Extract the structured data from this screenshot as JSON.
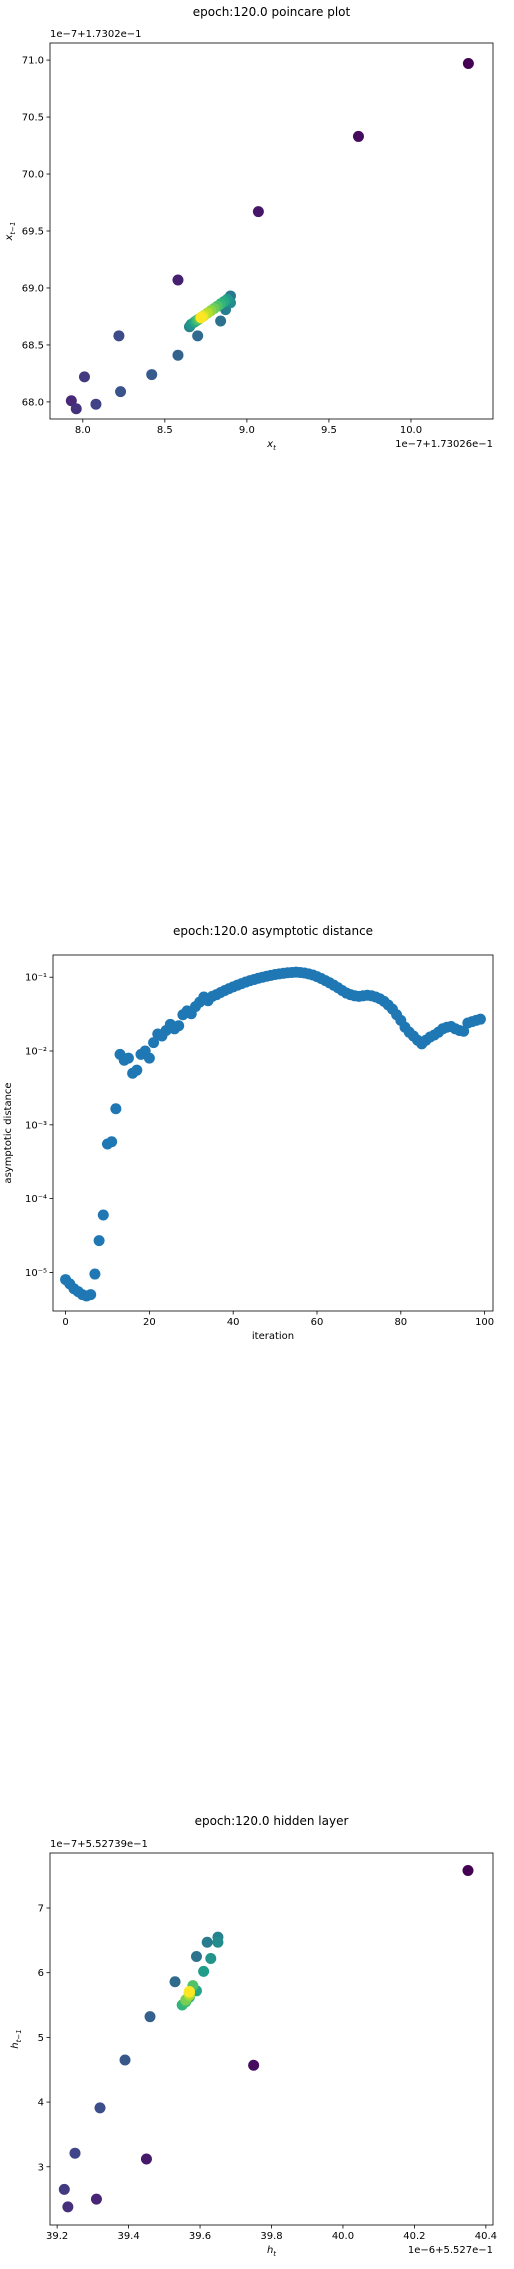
{
  "chart_data": [
    {
      "type": "scatter",
      "title": "epoch:120.0 poincare plot",
      "xlabel": "x_t",
      "ylabel": "x_{t-1}",
      "x_offset_text": "1e−7+1.73026e−1",
      "y_offset_text": "1e−7+1.7302e−1",
      "xlim": [
        7.8,
        10.5
      ],
      "ylim": [
        67.85,
        71.15
      ],
      "xticks": [
        8.0,
        8.5,
        9.0,
        9.5,
        10.0
      ],
      "yticks": [
        68.0,
        68.5,
        69.0,
        69.5,
        70.0,
        70.5,
        71.0
      ],
      "colormap": "viridis",
      "points": [
        {
          "x": 10.35,
          "y": 70.97
        },
        {
          "x": 9.68,
          "y": 70.33
        },
        {
          "x": 9.07,
          "y": 69.67
        },
        {
          "x": 8.58,
          "y": 69.07
        },
        {
          "x": 7.93,
          "y": 68.01
        },
        {
          "x": 7.96,
          "y": 67.94
        },
        {
          "x": 8.01,
          "y": 68.22
        },
        {
          "x": 8.08,
          "y": 67.98
        },
        {
          "x": 8.22,
          "y": 68.58
        },
        {
          "x": 8.23,
          "y": 68.09
        },
        {
          "x": 8.42,
          "y": 68.24
        },
        {
          "x": 8.58,
          "y": 68.41
        },
        {
          "x": 8.7,
          "y": 68.58
        },
        {
          "x": 8.84,
          "y": 68.71
        },
        {
          "x": 8.9,
          "y": 68.93
        },
        {
          "x": 8.87,
          "y": 68.81
        },
        {
          "x": 8.65,
          "y": 68.66
        },
        {
          "x": 8.9,
          "y": 68.87
        },
        {
          "x": 8.66,
          "y": 68.68
        },
        {
          "x": 8.88,
          "y": 68.9
        },
        {
          "x": 8.68,
          "y": 68.7
        },
        {
          "x": 8.86,
          "y": 68.88
        },
        {
          "x": 8.69,
          "y": 68.71
        },
        {
          "x": 8.84,
          "y": 68.86
        },
        {
          "x": 8.7,
          "y": 68.72
        },
        {
          "x": 8.82,
          "y": 68.84
        },
        {
          "x": 8.71,
          "y": 68.73
        },
        {
          "x": 8.8,
          "y": 68.82
        },
        {
          "x": 8.72,
          "y": 68.74
        },
        {
          "x": 8.78,
          "y": 68.8
        },
        {
          "x": 8.73,
          "y": 68.75
        },
        {
          "x": 8.76,
          "y": 68.78
        },
        {
          "x": 8.74,
          "y": 68.76
        },
        {
          "x": 8.72,
          "y": 68.74
        },
        {
          "x": 8.73,
          "y": 68.75
        },
        {
          "x": 8.72,
          "y": 68.74
        }
      ]
    },
    {
      "type": "scatter",
      "title": "epoch:120.0 asymptotic distance",
      "xlabel": "iteration",
      "ylabel": "asymptotic distance",
      "yscale": "log",
      "xlim": [
        -3,
        102
      ],
      "ylim": [
        3e-06,
        0.2
      ],
      "xticks": [
        0,
        20,
        40,
        60,
        80,
        100
      ],
      "yticks": [
        1e-05,
        0.0001,
        0.001,
        0.01,
        0.1
      ],
      "ytick_labels": [
        "10⁻⁵",
        "10⁻⁴",
        "10⁻³",
        "10⁻²",
        "10⁻¹"
      ],
      "color": "#1f77b4",
      "y": [
        8e-06,
        7e-06,
        6e-06,
        5.5e-06,
        5e-06,
        4.8e-06,
        5e-06,
        9.5e-06,
        2.7e-05,
        6e-05,
        0.00055,
        0.00059,
        0.00165,
        0.009,
        0.0075,
        0.008,
        0.005,
        0.0055,
        0.009,
        0.01,
        0.008,
        0.013,
        0.017,
        0.016,
        0.019,
        0.023,
        0.02,
        0.022,
        0.031,
        0.035,
        0.032,
        0.04,
        0.046,
        0.054,
        0.048,
        0.055,
        0.058,
        0.062,
        0.066,
        0.07,
        0.074,
        0.078,
        0.082,
        0.086,
        0.09,
        0.093,
        0.097,
        0.1,
        0.103,
        0.106,
        0.109,
        0.111,
        0.113,
        0.115,
        0.116,
        0.117,
        0.116,
        0.114,
        0.111,
        0.107,
        0.102,
        0.096,
        0.09,
        0.084,
        0.078,
        0.072,
        0.066,
        0.061,
        0.058,
        0.056,
        0.055,
        0.056,
        0.057,
        0.056,
        0.054,
        0.051,
        0.047,
        0.042,
        0.037,
        0.031,
        0.026,
        0.021,
        0.018,
        0.016,
        0.014,
        0.0125,
        0.014,
        0.0155,
        0.0165,
        0.018,
        0.02,
        0.021,
        0.0215,
        0.02,
        0.019,
        0.0185,
        0.024,
        0.025,
        0.026,
        0.027
      ]
    },
    {
      "type": "scatter",
      "title": "epoch:120.0 hidden layer",
      "xlabel": "h_t",
      "ylabel": "h_{t-1}",
      "x_offset_text": "1e−6+5.527e−1",
      "y_offset_text": "1e−7+5.52739e−1",
      "xlim": [
        39.18,
        40.42
      ],
      "ylim": [
        2.1,
        7.85
      ],
      "xticks": [
        39.2,
        39.4,
        39.6,
        39.8,
        40.0,
        40.2,
        40.4
      ],
      "yticks": [
        3,
        4,
        5,
        6,
        7
      ],
      "colormap": "viridis",
      "points": [
        {
          "x": 40.35,
          "y": 7.58
        },
        {
          "x": 39.75,
          "y": 4.57
        },
        {
          "x": 39.45,
          "y": 3.12
        },
        {
          "x": 39.31,
          "y": 2.5
        },
        {
          "x": 39.23,
          "y": 2.38
        },
        {
          "x": 39.22,
          "y": 2.65
        },
        {
          "x": 39.25,
          "y": 3.21
        },
        {
          "x": 39.32,
          "y": 3.91
        },
        {
          "x": 39.39,
          "y": 4.65
        },
        {
          "x": 39.46,
          "y": 5.32
        },
        {
          "x": 39.53,
          "y": 5.86
        },
        {
          "x": 39.59,
          "y": 6.25
        },
        {
          "x": 39.62,
          "y": 6.47
        },
        {
          "x": 39.65,
          "y": 6.55
        },
        {
          "x": 39.65,
          "y": 6.47
        },
        {
          "x": 39.63,
          "y": 6.22
        },
        {
          "x": 39.61,
          "y": 6.02
        },
        {
          "x": 39.59,
          "y": 5.72
        },
        {
          "x": 39.57,
          "y": 5.62
        },
        {
          "x": 39.55,
          "y": 5.5
        },
        {
          "x": 39.56,
          "y": 5.55
        },
        {
          "x": 39.58,
          "y": 5.8
        },
        {
          "x": 39.57,
          "y": 5.66
        },
        {
          "x": 39.56,
          "y": 5.58
        },
        {
          "x": 39.57,
          "y": 5.7
        },
        {
          "x": 39.57,
          "y": 5.65
        },
        {
          "x": 39.57,
          "y": 5.68
        },
        {
          "x": 39.57,
          "y": 5.7
        },
        {
          "x": 39.57,
          "y": 5.7
        },
        {
          "x": 39.57,
          "y": 5.71
        }
      ]
    }
  ]
}
